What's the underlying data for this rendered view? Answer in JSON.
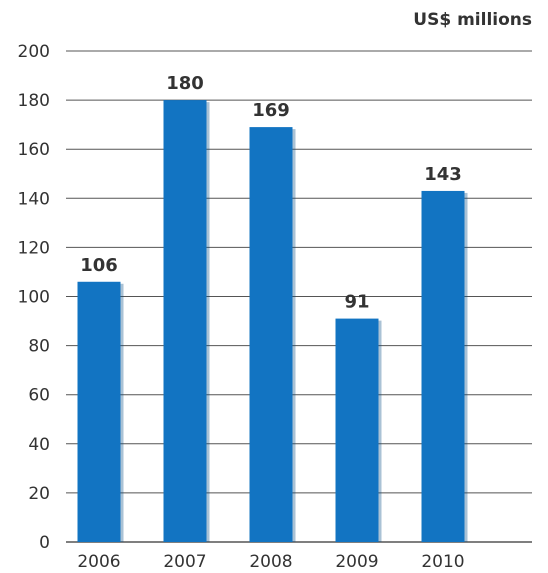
{
  "chart_data": {
    "type": "bar",
    "unit_label": "US$ millions",
    "categories": [
      "2006",
      "2007",
      "2008",
      "2009",
      "2010"
    ],
    "values": [
      106,
      180,
      169,
      91,
      143
    ],
    "data_labels": [
      "106",
      "180",
      "169",
      "91",
      "143"
    ],
    "yticks": [
      "0",
      "20",
      "40",
      "60",
      "80",
      "100",
      "120",
      "140",
      "160",
      "180",
      "200"
    ],
    "ylim": [
      0,
      200
    ],
    "grid": true,
    "bar_color": "#1274c2",
    "bar_shadow_color": "#0b4f88",
    "title": "",
    "xlabel": "",
    "ylabel": ""
  }
}
